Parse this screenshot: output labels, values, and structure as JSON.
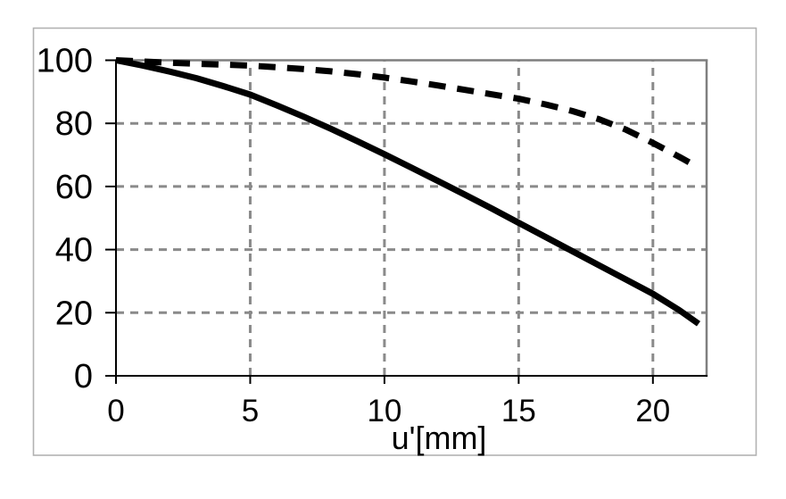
{
  "figure": {
    "background": "#ffffff",
    "frame_border_color": "#b2b2b2"
  },
  "chart_data": {
    "type": "line",
    "title": "",
    "xlabel": "u'[mm]",
    "ylabel": "",
    "xlim": [
      0,
      22
    ],
    "ylim": [
      0,
      100
    ],
    "x_ticks": [
      0,
      5,
      10,
      15,
      20
    ],
    "y_ticks": [
      0,
      20,
      40,
      60,
      80,
      100
    ],
    "grid": true,
    "grid_style": "dashed",
    "legend": "none",
    "axis_color": "#000000",
    "grid_color": "#8a8a8a",
    "plot_border_color": "#7f7f7f",
    "tick_label_color": "#000000",
    "series": [
      {
        "name": "solid-curve",
        "line_style": "solid",
        "color": "#000000",
        "width": 7,
        "x": [
          0,
          1,
          2,
          3,
          4,
          5,
          6,
          7,
          8,
          9,
          10,
          11,
          12,
          13,
          14,
          15,
          16,
          17,
          18,
          19,
          20,
          21,
          21.7
        ],
        "y": [
          100,
          98.3,
          96.4,
          94.3,
          91.8,
          89.1,
          85.7,
          82.1,
          78.3,
          74.3,
          70.2,
          66.0,
          61.7,
          57.4,
          53.0,
          48.5,
          44.0,
          39.5,
          35.0,
          30.5,
          26.0,
          20.7,
          16.5
        ]
      },
      {
        "name": "dashed-curve",
        "line_style": "dashed",
        "color": "#000000",
        "width": 7,
        "x": [
          0,
          1,
          2,
          3,
          4,
          5,
          6,
          7,
          8,
          9,
          10,
          11,
          12,
          13,
          14,
          15,
          16,
          17,
          18,
          19,
          20,
          21,
          21.7
        ],
        "y": [
          100,
          99.6,
          99.2,
          98.9,
          98.6,
          98.3,
          97.8,
          97.2,
          96.5,
          95.6,
          94.5,
          93.3,
          92.0,
          90.6,
          89.2,
          87.8,
          86.0,
          83.9,
          81.3,
          78.0,
          73.8,
          69.3,
          66.0
        ]
      }
    ]
  }
}
